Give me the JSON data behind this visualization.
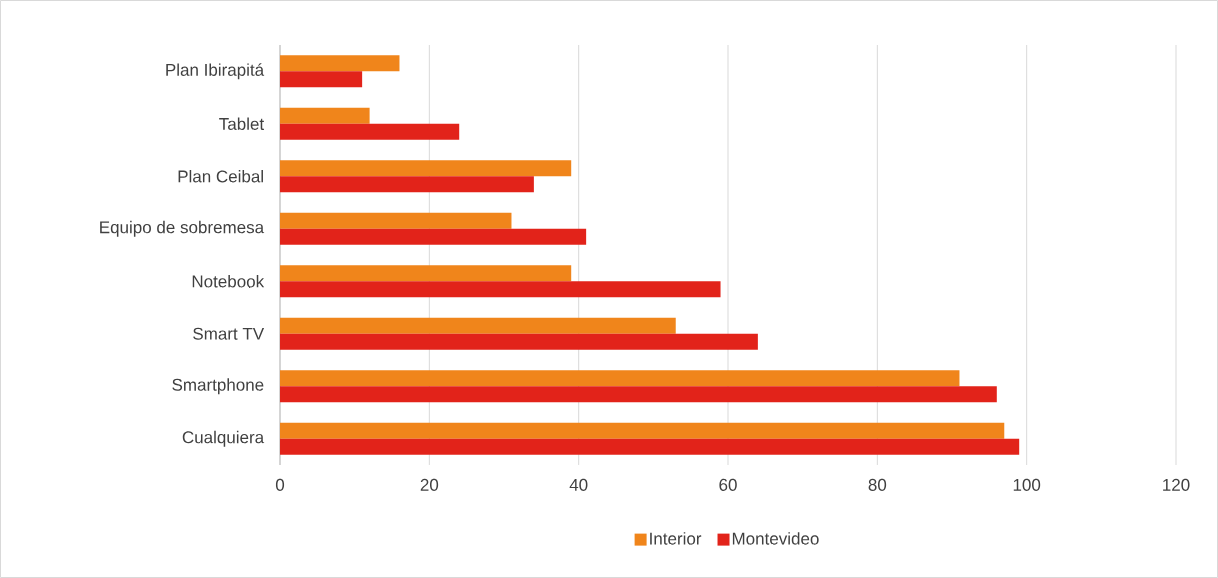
{
  "chart_data": {
    "type": "bar",
    "orientation": "horizontal",
    "categories": [
      "Plan Ibirapitá",
      "Tablet",
      "Plan Ceibal",
      "Equipo de sobremesa",
      "Notebook",
      "Smart TV",
      "Smartphone",
      "Cualquiera"
    ],
    "series": [
      {
        "name": "Interior",
        "color": "#f0851b",
        "values": [
          16,
          12,
          39,
          31,
          39,
          53,
          91,
          97
        ]
      },
      {
        "name": "Montevideo",
        "color": "#e2231a",
        "values": [
          11,
          24,
          34,
          41,
          59,
          64,
          96,
          99
        ]
      }
    ],
    "xlim": [
      0,
      120
    ],
    "xticks": [
      0,
      20,
      40,
      60,
      80,
      100,
      120
    ],
    "grid": "x",
    "legend": "bottom"
  }
}
